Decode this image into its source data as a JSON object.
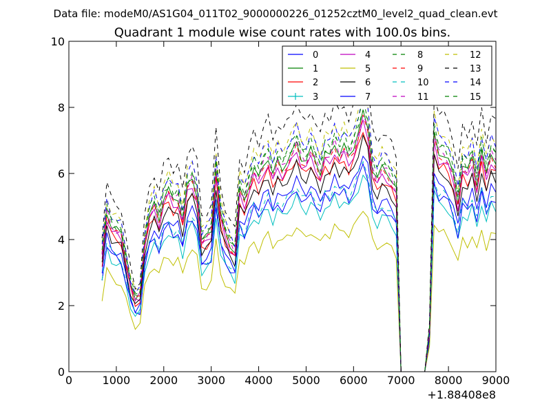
{
  "header": {
    "suptitle": "Data file: modeM0/AS1G04_011T02_9000000226_01252cztM0_level2_quad_clean.evt",
    "title": "Quadrant 1 module wise count rates with 100.0s bins.",
    "x_offset_label": "+1.88408e8"
  },
  "chart_data": {
    "type": "line",
    "title": "Quadrant 1 module wise count rates with 100.0s bins.",
    "xlabel": "",
    "ylabel": "",
    "xlim": [
      0,
      9000
    ],
    "ylim": [
      0,
      10
    ],
    "x_ticks": [
      0,
      1000,
      2000,
      3000,
      4000,
      5000,
      6000,
      7000,
      8000,
      9000
    ],
    "x_tick_labels": [
      "0",
      "1000",
      "2000",
      "3000",
      "4000",
      "5000",
      "6000",
      "7000",
      "8000",
      "9000"
    ],
    "y_ticks": [
      0,
      2,
      4,
      6,
      8,
      10
    ],
    "y_tick_labels": [
      "0",
      "2",
      "4",
      "6",
      "8",
      "10"
    ],
    "x_offset": 188408000,
    "legend_position": "top-right",
    "legend_columns": 4,
    "x_start": 700,
    "x_step": 100,
    "base_profile": [
      3.2,
      4.4,
      4.0,
      3.9,
      3.8,
      3.1,
      2.4,
      2.0,
      2.1,
      3.6,
      4.3,
      4.6,
      4.2,
      4.8,
      5.0,
      4.7,
      4.8,
      4.2,
      5.1,
      5.3,
      4.9,
      3.6,
      3.7,
      3.9,
      5.6,
      4.3,
      3.8,
      3.5,
      3.3,
      5.0,
      4.7,
      5.2,
      5.6,
      5.3,
      5.7,
      5.9,
      5.4,
      5.8,
      5.6,
      5.8,
      6.0,
      6.3,
      5.9,
      5.8,
      6.1,
      5.8,
      5.5,
      6.0,
      5.9,
      6.3,
      6.0,
      6.2,
      5.9,
      6.2,
      6.6,
      7.1,
      6.7,
      5.6,
      5.3,
      5.6,
      5.5,
      5.3,
      5.0,
      0.0,
      0.0,
      0.0,
      0.0,
      0.0,
      0.0,
      1.1,
      6.5,
      6.0,
      6.0,
      5.8,
      5.4,
      4.7,
      5.7,
      5.5,
      5.9,
      5.2,
      6.1,
      5.4,
      6.0,
      5.8,
      5.2,
      5.5,
      5.7,
      5.3,
      5.2,
      5.5,
      4.9,
      5.0
    ],
    "series": [
      {
        "name": "0",
        "color": "#0000ff",
        "style": "solid",
        "scale": 0.93
      },
      {
        "name": "1",
        "color": "#008000",
        "style": "solid",
        "scale": 1.1
      },
      {
        "name": "2",
        "color": "#ff0000",
        "style": "solid",
        "scale": 1.03
      },
      {
        "name": "3",
        "color": "#00bfbf",
        "style": "solid",
        "scale": 0.84,
        "marker": "plus"
      },
      {
        "name": "4",
        "color": "#bf00bf",
        "style": "solid",
        "scale": 1.06
      },
      {
        "name": "5",
        "color": "#bfbf00",
        "style": "solid",
        "scale": 0.7
      },
      {
        "name": "6",
        "color": "#000000",
        "style": "solid",
        "scale": 1.0
      },
      {
        "name": "7",
        "color": "#0000ff",
        "style": "solid",
        "scale": 0.88
      },
      {
        "name": "8",
        "color": "#008000",
        "style": "dashed",
        "scale": 1.13
      },
      {
        "name": "9",
        "color": "#ff0000",
        "style": "dashed",
        "scale": 1.08
      },
      {
        "name": "10",
        "color": "#00bfbf",
        "style": "dashed",
        "scale": 0.9
      },
      {
        "name": "11",
        "color": "#bf00bf",
        "style": "dashed",
        "scale": 1.1
      },
      {
        "name": "12",
        "color": "#bfbf00",
        "style": "dashed",
        "scale": 1.2
      },
      {
        "name": "13",
        "color": "#000000",
        "style": "dashed",
        "scale": 1.3
      },
      {
        "name": "14",
        "color": "#0000ff",
        "style": "dashed",
        "scale": 1.18
      },
      {
        "name": "15",
        "color": "#008000",
        "style": "dashed",
        "scale": 1.15
      }
    ]
  }
}
